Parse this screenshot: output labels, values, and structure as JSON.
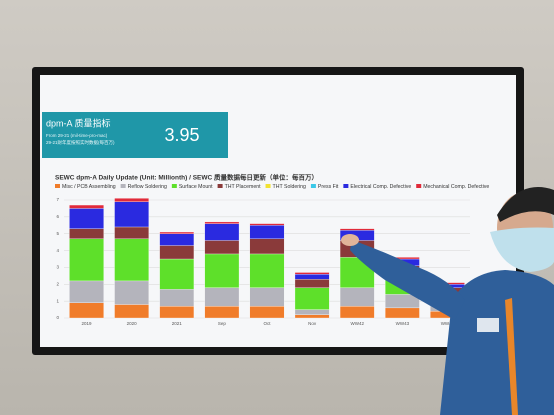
{
  "kpi": {
    "title": "dpm-A 质量指标",
    "subtitle": [
      "From 29-21 (mil-time-pro-mac)",
      "29-21財年度按照实时数据(每百万)"
    ],
    "value": 3.95
  },
  "chart_data": {
    "type": "bar",
    "stacked": true,
    "title": "SEWC dpm-A Daily Update (Unit: Millionth) / SEWC 质量数据每日更新（单位：每百万）",
    "categories": [
      "2019",
      "2020",
      "2021",
      "Sep",
      "Oct",
      "Nov",
      "WW42",
      "WW43",
      "WW44"
    ],
    "ylim": [
      0,
      7
    ],
    "yticks": [
      0,
      1,
      2,
      3,
      4,
      5,
      6,
      7
    ],
    "grid": true,
    "series": [
      {
        "name": "Misc / PCB Assembling",
        "color": "#f07c2a",
        "values": [
          0.9,
          0.8,
          0.7,
          0.7,
          0.7,
          0.2,
          0.7,
          0.6,
          0.4
        ]
      },
      {
        "name": "Reflow Soldering",
        "color": "#b4b4bc",
        "values": [
          1.3,
          1.4,
          1.0,
          1.1,
          1.1,
          0.3,
          1.1,
          0.8,
          0.5
        ]
      },
      {
        "name": "Surface Mount",
        "color": "#5ee02a",
        "values": [
          2.5,
          2.5,
          1.8,
          2.0,
          2.0,
          1.3,
          1.8,
          1.2,
          0.6
        ]
      },
      {
        "name": "THT Placement",
        "color": "#8a3a3a",
        "values": [
          0.6,
          0.7,
          0.8,
          0.8,
          0.9,
          0.5,
          1.0,
          0.5,
          0.3
        ]
      },
      {
        "name": "THT Soldering",
        "color": "#f2e232",
        "values": [
          0,
          0,
          0,
          0,
          0,
          0,
          0,
          0,
          0
        ]
      },
      {
        "name": "Press Fit",
        "color": "#3ac8e8",
        "values": [
          0,
          0,
          0,
          0,
          0,
          0,
          0,
          0,
          0
        ]
      },
      {
        "name": "Electrical Comp. Defective",
        "color": "#2a2ae0",
        "values": [
          1.2,
          1.5,
          0.7,
          1.0,
          0.8,
          0.3,
          0.6,
          0.4,
          0.2
        ]
      },
      {
        "name": "Mechanical Comp. Defective",
        "color": "#e02a3a",
        "values": [
          0.2,
          0.2,
          0.1,
          0.1,
          0.1,
          0.1,
          0.1,
          0.1,
          0.1
        ]
      }
    ]
  }
}
